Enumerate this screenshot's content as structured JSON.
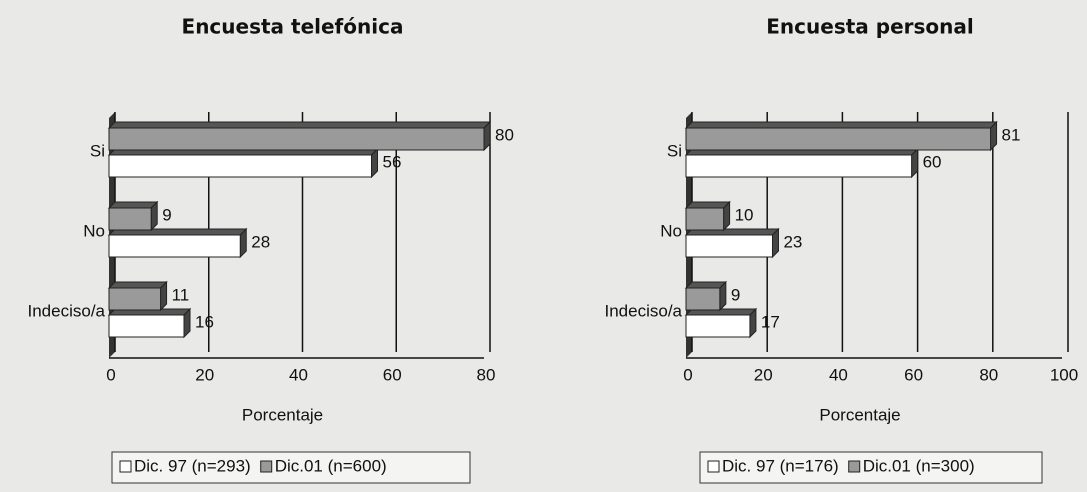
{
  "chart_data": [
    {
      "type": "bar",
      "title": "Encuesta telefónica",
      "xlabel": "Porcentaje",
      "categories": [
        "Si",
        "No",
        "Indeciso/a"
      ],
      "series": [
        {
          "name": "Dic. 97 (n=293)",
          "color": "#ffffff",
          "values": [
            56,
            28,
            16
          ]
        },
        {
          "name": "Dic.01 (n=600)",
          "color": "#9a9a9a",
          "values": [
            80,
            9,
            11
          ]
        }
      ],
      "xlim": [
        0,
        80
      ],
      "xticks": [
        0,
        20,
        40,
        60,
        80
      ],
      "grid": true,
      "legend": "bottom"
    },
    {
      "type": "bar",
      "title": "Encuesta personal",
      "xlabel": "Porcentaje",
      "categories": [
        "Si",
        "No",
        "Indeciso/a"
      ],
      "series": [
        {
          "name": "Dic. 97 (n=176)",
          "color": "#ffffff",
          "values": [
            60,
            23,
            17
          ]
        },
        {
          "name": "Dic.01 (n=300)",
          "color": "#9a9a9a",
          "values": [
            81,
            10,
            9
          ]
        }
      ],
      "xlim": [
        0,
        100
      ],
      "xticks": [
        0,
        20,
        40,
        60,
        80,
        100
      ],
      "grid": true,
      "legend": "bottom"
    }
  ]
}
